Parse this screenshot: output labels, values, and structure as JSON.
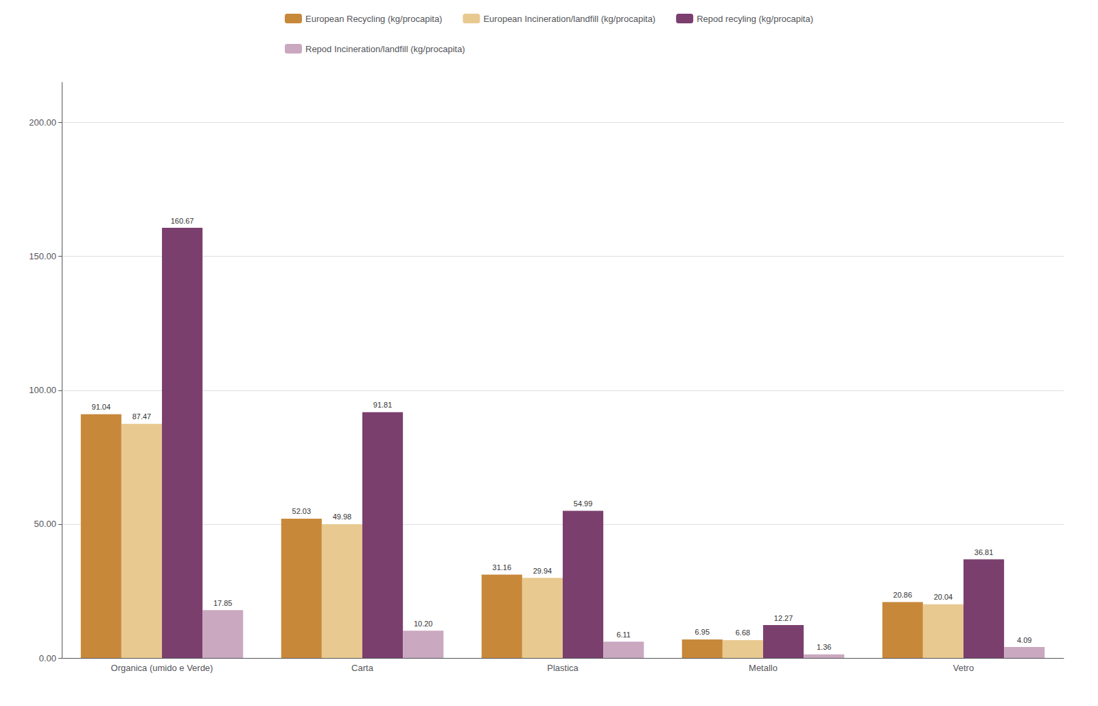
{
  "chart_data": {
    "type": "bar",
    "categories": [
      "Organica (umido e Verde)",
      "Carta",
      "Plastica",
      "Metallo",
      "Vetro"
    ],
    "series": [
      {
        "name": "European Recycling (kg/procapita)",
        "color": "#C8883A",
        "values": [
          91.04,
          52.03,
          31.16,
          6.95,
          20.86
        ],
        "value_labels": [
          "91.04",
          "52.03",
          "31.16",
          "6.95",
          "20.86"
        ]
      },
      {
        "name": "European Incineration/landfill (kg/procapita)",
        "color": "#E8C990",
        "values": [
          87.47,
          49.98,
          29.94,
          6.68,
          20.04
        ],
        "value_labels": [
          "87.47",
          "49.98",
          "29.94",
          "6.68",
          "20.04"
        ]
      },
      {
        "name": "Repod recyling (kg/procapita)",
        "color": "#7B3F6E",
        "values": [
          160.67,
          91.81,
          54.99,
          12.27,
          36.81
        ],
        "value_labels": [
          "160.67",
          "91.81",
          "54.99",
          "12.27",
          "36.81"
        ]
      },
      {
        "name": "Repod Incineration/landfill (kg/procapita)",
        "color": "#C9A8C0",
        "values": [
          17.85,
          10.2,
          6.11,
          1.36,
          4.09
        ],
        "value_labels": [
          "17.85",
          "10.20",
          "6.11",
          "1.36",
          "4.09"
        ]
      }
    ],
    "ylim": [
      0,
      215
    ],
    "yticks": [
      {
        "value": 0,
        "label": "0.00"
      },
      {
        "value": 50,
        "label": "50.00"
      },
      {
        "value": 100,
        "label": "100.00"
      },
      {
        "value": 150,
        "label": "150.00"
      },
      {
        "value": 200,
        "label": "200.00"
      }
    ],
    "grid": true,
    "legend": "top",
    "data_labels": true
  }
}
